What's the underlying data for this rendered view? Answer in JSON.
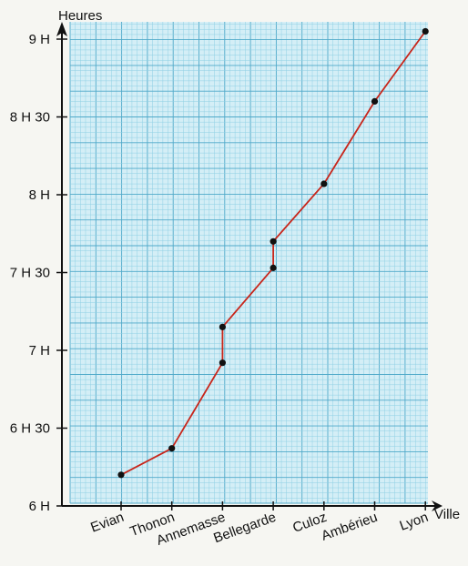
{
  "chart_data": {
    "type": "line",
    "ylabel": "Heures",
    "xlabel": "Ville",
    "categories": [
      "Evian",
      "Thonon",
      "Annemasse",
      "Bellegarde",
      "Culoz",
      "Ambérieu",
      "Lyon"
    ],
    "y_ticks": [
      {
        "value": 6.0,
        "label": "6 H"
      },
      {
        "value": 6.5,
        "label": "6 H 30"
      },
      {
        "value": 7.0,
        "label": "7 H"
      },
      {
        "value": 7.5,
        "label": "7 H 30"
      },
      {
        "value": 8.0,
        "label": "8 H"
      },
      {
        "value": 8.5,
        "label": "8 H 30"
      },
      {
        "value": 9.0,
        "label": "9 H"
      }
    ],
    "ylim": [
      6.0,
      9.1
    ],
    "grid": true,
    "points": [
      {
        "city_index": 0,
        "y": 6.2
      },
      {
        "city_index": 1,
        "y": 6.37
      },
      {
        "city_index": 2,
        "y": 6.92
      },
      {
        "city_index": 2,
        "y": 7.15
      },
      {
        "city_index": 3,
        "y": 7.53
      },
      {
        "city_index": 3,
        "y": 7.7
      },
      {
        "city_index": 4,
        "y": 8.07
      },
      {
        "city_index": 5,
        "y": 8.6
      },
      {
        "city_index": 6,
        "y": 9.05
      }
    ],
    "colors": {
      "line": "#c8261b",
      "point": "#111111",
      "grid_minor": "#8fd0e4",
      "grid_major": "#4fa9c9",
      "plot_bg": "#d4eef6"
    }
  }
}
